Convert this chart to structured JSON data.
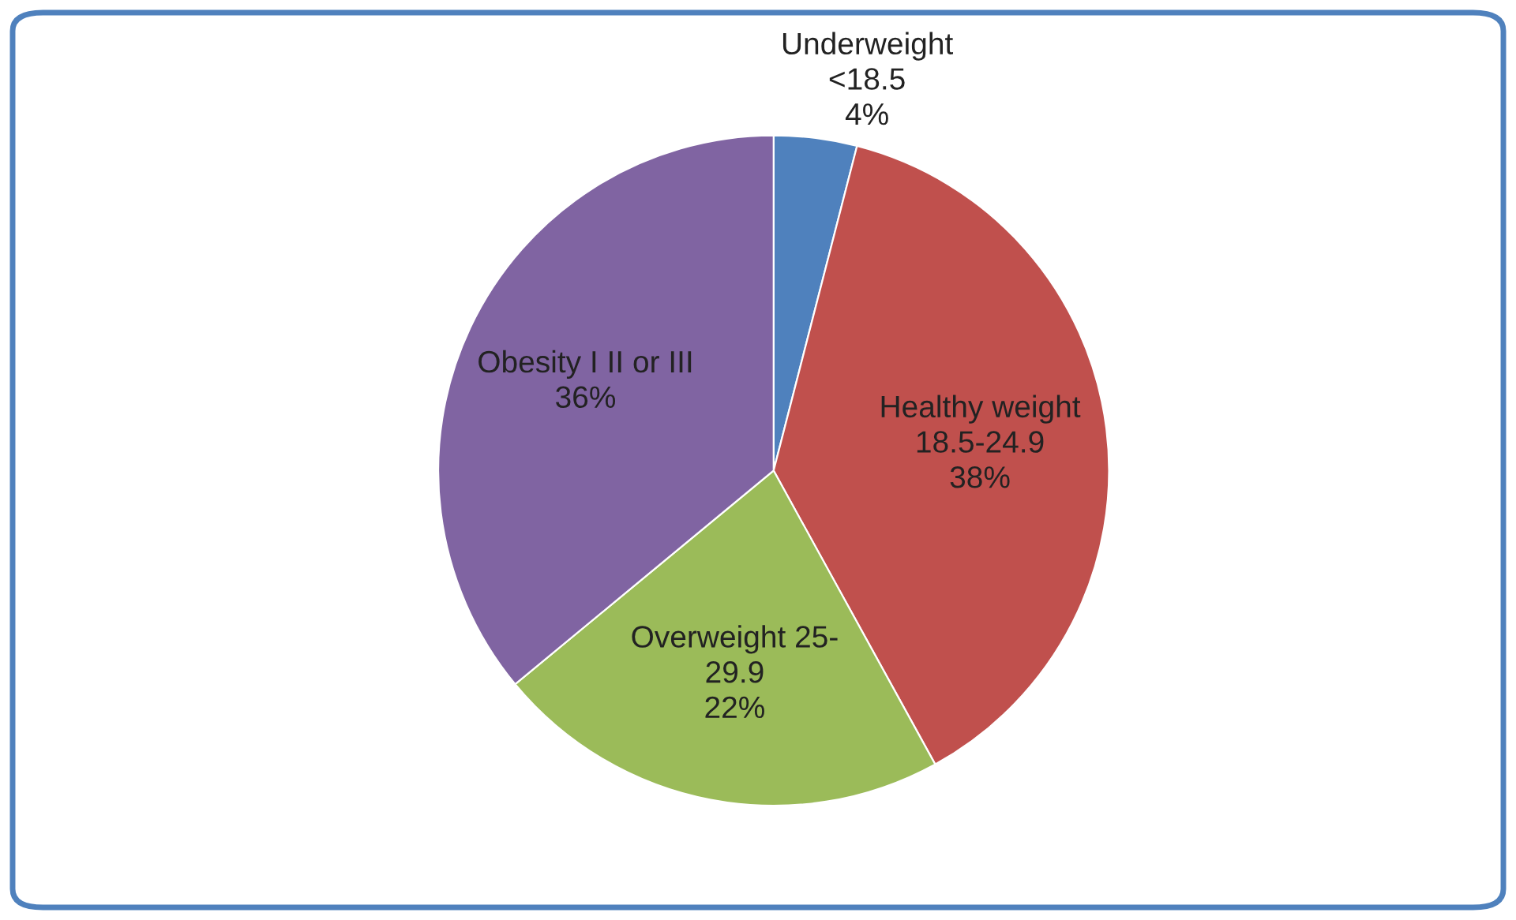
{
  "chart_data": {
    "type": "pie",
    "categories": [
      "Underweight\n<18.5",
      "Healthy weight\n18.5-24.9",
      "Overweight 25-\n29.9",
      "Obesity I II or III"
    ],
    "values": [
      4,
      38,
      22,
      36
    ],
    "colors": [
      "#4f81bd",
      "#c0504d",
      "#9bbb59",
      "#8064a2"
    ],
    "value_labels": [
      "4%",
      "38%",
      "22%",
      "36%"
    ]
  }
}
